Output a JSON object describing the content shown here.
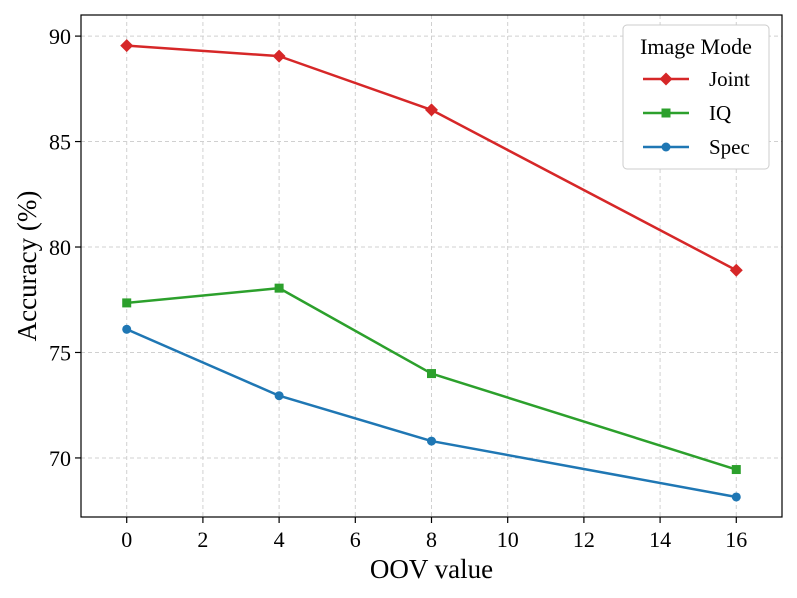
{
  "chart_data": {
    "type": "line",
    "title": "",
    "xlabel": "OOV value",
    "ylabel": "Accuracy (%)",
    "x": [
      0,
      4,
      8,
      16
    ],
    "xlim": [
      -1.2,
      17.2
    ],
    "ylim": [
      67.2,
      91.0
    ],
    "xticks": [
      0,
      2,
      4,
      6,
      8,
      10,
      12,
      14,
      16
    ],
    "yticks": [
      70,
      75,
      80,
      85,
      90
    ],
    "grid": true,
    "legend": {
      "title": "Image Mode",
      "position": "top-right"
    },
    "series": [
      {
        "name": "Joint",
        "marker": "diamond",
        "color": "#d62728",
        "values": [
          89.55,
          89.05,
          86.5,
          78.9
        ]
      },
      {
        "name": "IQ",
        "marker": "square",
        "color": "#2ca02c",
        "values": [
          77.35,
          78.05,
          74.0,
          69.45
        ]
      },
      {
        "name": "Spec",
        "marker": "circle",
        "color": "#1f77b4",
        "values": [
          76.1,
          72.95,
          70.8,
          68.15
        ]
      }
    ]
  }
}
